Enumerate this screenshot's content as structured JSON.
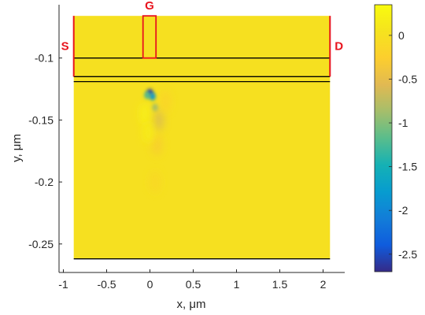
{
  "chart_data": {
    "type": "heatmap",
    "title": "",
    "xlabel": "x, μm",
    "ylabel": "y, μm",
    "xlim": [
      -1.05,
      2.25
    ],
    "ylim": [
      -0.273,
      -0.057
    ],
    "xticks": [
      -1,
      -0.5,
      0,
      0.5,
      1,
      1.5,
      2
    ],
    "xtick_labels": [
      "-1",
      "-0.5",
      "0",
      "0.5",
      "1",
      "1.5",
      "2"
    ],
    "yticks": [
      -0.1,
      -0.15,
      -0.2,
      -0.25
    ],
    "ytick_labels": [
      "-0.1",
      "-0.15",
      "-0.2",
      "-0.25"
    ],
    "colormap": "parula",
    "colorbar": {
      "range": [
        -2.7,
        0.35
      ],
      "ticks": [
        0,
        -0.5,
        -1,
        -1.5,
        -2,
        -2.5
      ],
      "tick_labels": [
        "0",
        "-0.5",
        "-1",
        "-1.5",
        "-2",
        "-2.5"
      ]
    },
    "grid": false,
    "background_value": 0,
    "domain": {
      "x": [
        -0.88,
        2.08
      ],
      "y": [
        -0.262,
        -0.066
      ]
    },
    "layer_lines_y": [
      -0.1,
      -0.115,
      -0.119,
      -0.262
    ],
    "contacts": [
      {
        "label": "S",
        "x": -0.88,
        "y": [
          -0.066,
          -0.115
        ]
      },
      {
        "label": "D",
        "x": 2.08,
        "y": [
          -0.066,
          -0.115
        ]
      }
    ],
    "gate": {
      "label": "G",
      "x": [
        -0.08,
        0.07
      ],
      "y": [
        -0.066,
        -0.1
      ]
    },
    "features": [
      {
        "x": 0.0,
        "y": -0.128,
        "value": -2.6
      },
      {
        "x": 0.03,
        "y": -0.131,
        "value": -1.8
      },
      {
        "x": -0.03,
        "y": -0.13,
        "value": -1.2
      },
      {
        "x": 0.06,
        "y": -0.14,
        "value": -0.9
      },
      {
        "x": 0.1,
        "y": -0.15,
        "value": -0.6
      },
      {
        "x": 0.08,
        "y": -0.17,
        "value": -0.3
      },
      {
        "x": 0.06,
        "y": -0.2,
        "value": -0.15
      },
      {
        "x": -0.06,
        "y": -0.145,
        "value": 0.25
      },
      {
        "x": -0.02,
        "y": -0.16,
        "value": 0.2
      },
      {
        "x": 0.18,
        "y": -0.135,
        "value": -0.2
      }
    ]
  },
  "colors": {
    "contact": "#e8141e",
    "layer_line": "#000000",
    "axis": "#262626"
  }
}
